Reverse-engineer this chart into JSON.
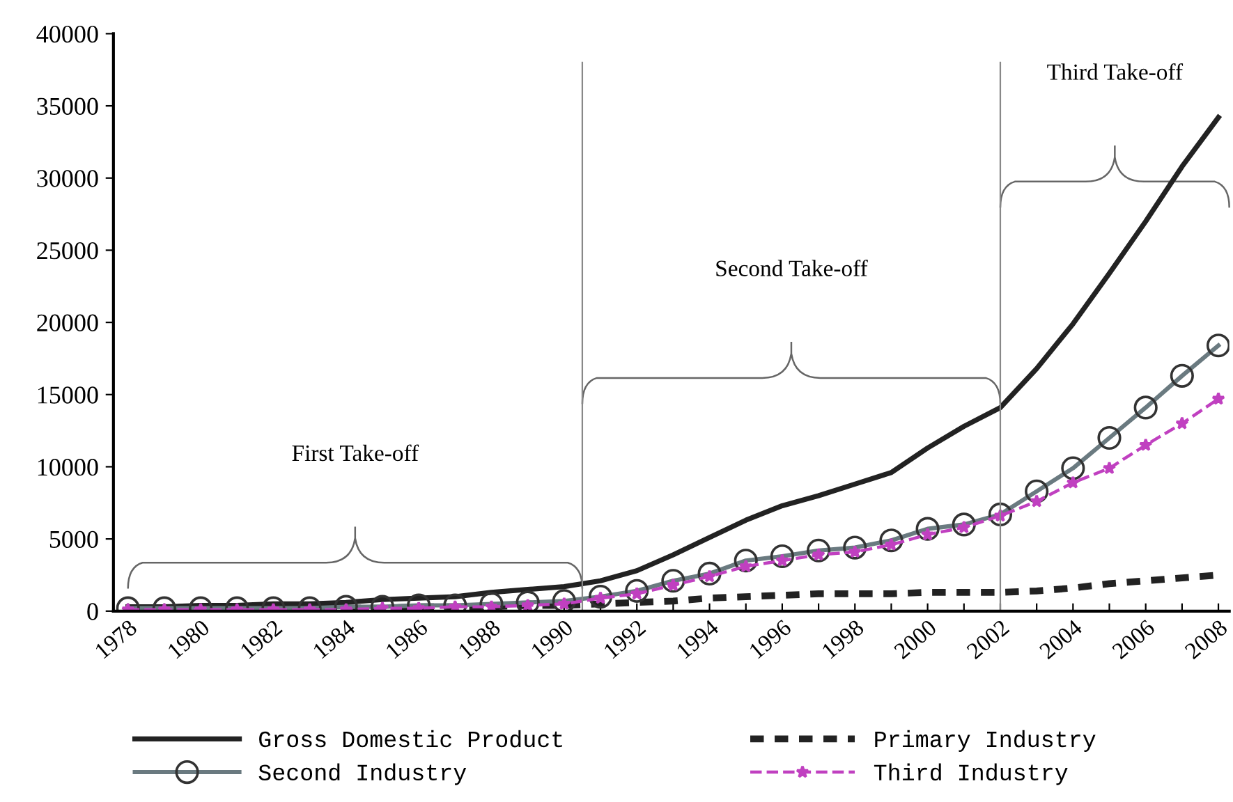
{
  "chart_data": {
    "type": "line",
    "x": [
      1978,
      1979,
      1980,
      1981,
      1982,
      1983,
      1984,
      1985,
      1986,
      1987,
      1988,
      1989,
      1990,
      1991,
      1992,
      1993,
      1994,
      1995,
      1996,
      1997,
      1998,
      1999,
      2000,
      2001,
      2002,
      2003,
      2004,
      2005,
      2006,
      2007,
      2008
    ],
    "series": [
      {
        "name": "Gross Domestic Product",
        "color": "#222222",
        "line_style": "solid",
        "marker": "none",
        "values": [
          300,
          300,
          400,
          400,
          500,
          500,
          600,
          800,
          900,
          1000,
          1300,
          1500,
          1700,
          2100,
          2800,
          3900,
          5100,
          6300,
          7300,
          8000,
          8800,
          9600,
          11300,
          12800,
          14100,
          16800,
          19900,
          23400,
          27000,
          30800,
          34200
        ]
      },
      {
        "name": "Primary Industry",
        "color": "#222222",
        "line_style": "dashed",
        "marker": "none",
        "values": [
          100,
          100,
          100,
          100,
          200,
          200,
          200,
          200,
          300,
          300,
          300,
          400,
          400,
          500,
          600,
          700,
          900,
          1000,
          1100,
          1200,
          1200,
          1200,
          1300,
          1300,
          1300,
          1400,
          1600,
          1900,
          2100,
          2300,
          2500
        ]
      },
      {
        "name": "Second Industry",
        "color": "#6a7a80",
        "line_style": "solid",
        "marker": "circle",
        "values": [
          200,
          200,
          200,
          200,
          200,
          200,
          300,
          300,
          400,
          400,
          500,
          600,
          700,
          1000,
          1400,
          2100,
          2600,
          3500,
          3800,
          4200,
          4400,
          4900,
          5700,
          6000,
          6700,
          8300,
          9900,
          12000,
          14100,
          16300,
          18400
        ]
      },
      {
        "name": "Third Industry",
        "color": "#c040c0",
        "line_style": "dashed",
        "marker": "star",
        "values": [
          100,
          100,
          100,
          100,
          100,
          100,
          100,
          200,
          200,
          300,
          300,
          400,
          500,
          900,
          1200,
          1800,
          2400,
          3100,
          3500,
          3900,
          4100,
          4600,
          5300,
          5800,
          6600,
          7600,
          8900,
          9900,
          11500,
          13000,
          14700
        ]
      }
    ],
    "xlim": [
      1977.6,
      2008.3
    ],
    "xticks": [
      1978,
      {
        "value": 1979,
        "label": null
      },
      1980,
      {
        "value": 1981,
        "label": null
      },
      1982,
      {
        "value": 1983,
        "label": null
      },
      1984,
      {
        "value": 1985,
        "label": null
      },
      1986,
      {
        "value": 1987,
        "label": null
      },
      1988,
      {
        "value": 1989,
        "label": null
      },
      1990,
      {
        "value": 1991,
        "label": null
      },
      1992,
      {
        "value": 1993,
        "label": null
      },
      1994,
      {
        "value": 1995,
        "label": null
      },
      1996,
      {
        "value": 1997,
        "label": null
      },
      1998,
      {
        "value": 1999,
        "label": null
      },
      2000,
      {
        "value": 2001,
        "label": null
      },
      2002,
      {
        "value": 2003,
        "label": null
      },
      2004,
      {
        "value": 2005,
        "label": null
      },
      2006,
      {
        "value": 2007,
        "label": null
      },
      2008
    ],
    "ylim": [
      0,
      40000
    ],
    "yticks": [
      0,
      5000,
      10000,
      15000,
      20000,
      25000,
      30000,
      35000,
      40000
    ],
    "ref_lines": [
      {
        "axis": "x",
        "value": 1990.5,
        "color": "#888888"
      },
      {
        "axis": "x",
        "value": 2002,
        "color": "#888888"
      }
    ],
    "annotations": [
      "First Take-off",
      "Second Take-off",
      "Third Take-off"
    ],
    "grid": false,
    "legend": "bottom"
  }
}
